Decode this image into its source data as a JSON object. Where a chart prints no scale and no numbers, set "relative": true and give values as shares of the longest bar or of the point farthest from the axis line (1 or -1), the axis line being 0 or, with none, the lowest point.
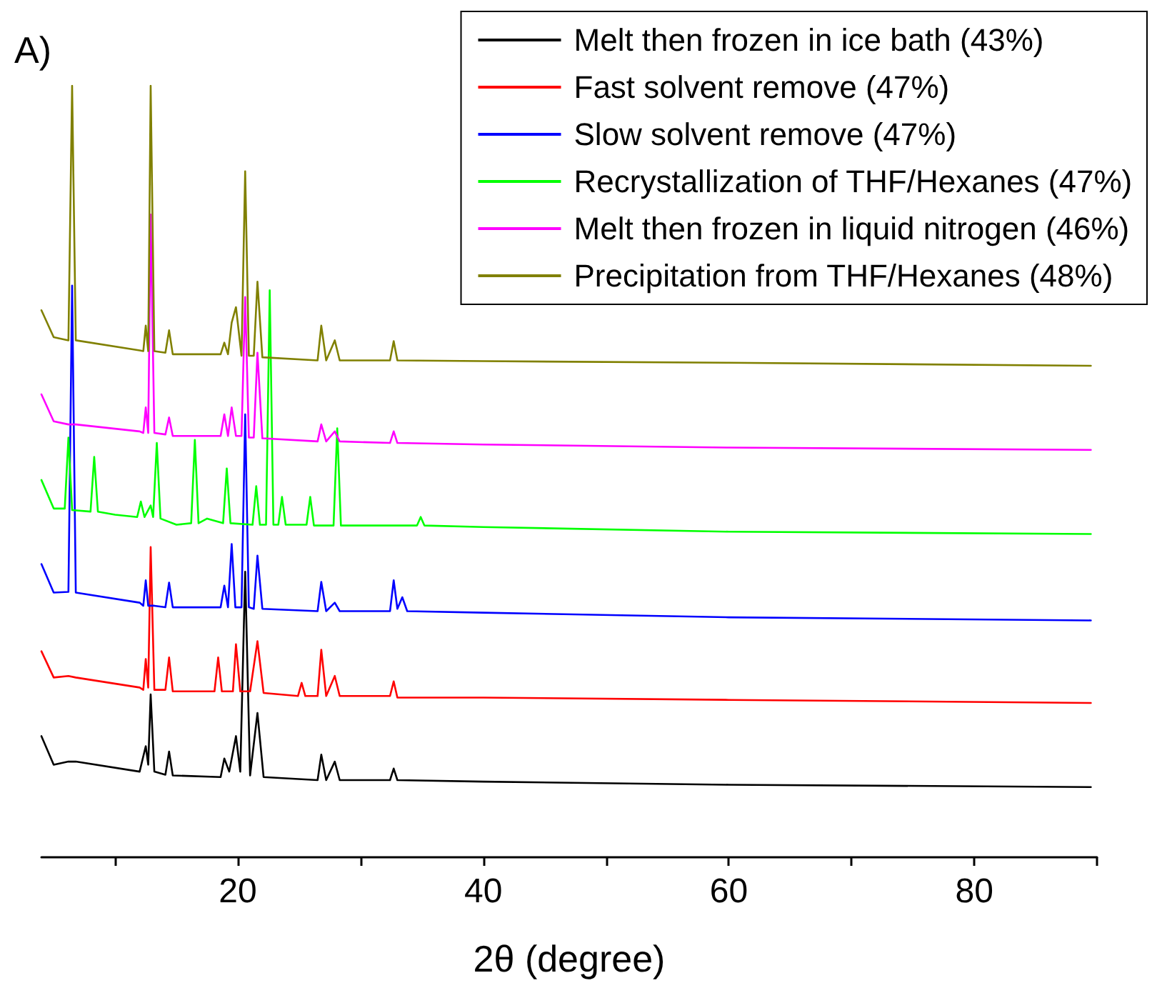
{
  "chart_data": {
    "type": "line",
    "relative": true,
    "xlabel": "2θ (degree)",
    "annotations": [
      "A)"
    ],
    "xlim": [
      4,
      90
    ],
    "xticks": [
      {
        "value": 10,
        "label": null
      },
      20,
      {
        "value": 30,
        "label": null
      },
      40,
      {
        "value": 50,
        "label": null
      },
      60,
      {
        "value": 70,
        "label": null
      },
      80,
      {
        "value": 90,
        "label": null
      }
    ],
    "grid": false,
    "legend": "top right",
    "marker": "none",
    "line_style": "solid",
    "series": [
      {
        "name": "Melt then frozen in ice bath (43%)",
        "color": "#000000",
        "x": [
          4,
          5,
          6.2,
          6.5,
          6.8,
          12,
          12.5,
          12.7,
          12.9,
          13.2,
          14.1,
          14.4,
          14.7,
          18.6,
          18.9,
          19.3,
          19.85,
          20.2,
          20.6,
          21.0,
          21.6,
          22.1,
          26.5,
          26.8,
          27.2,
          27.9,
          28.3,
          32.4,
          32.7,
          33,
          40,
          60,
          89.5
        ],
        "values": [
          0.157,
          0.12,
          0.124,
          null,
          0.124,
          0.111,
          0.144,
          0.12,
          0.211,
          0.111,
          0.107,
          0.137,
          0.106,
          0.104,
          0.128,
          0.111,
          0.157,
          0.111,
          0.37,
          0.106,
          0.187,
          0.104,
          0.1,
          0.133,
          0.1,
          0.124,
          0.1,
          0.1,
          0.115,
          0.1,
          0.098,
          0.094,
          0.091
        ]
      },
      {
        "name": "Fast solvent remove (47%)",
        "color": "#ff0000",
        "x": [
          4,
          5,
          6.2,
          6.5,
          6.8,
          12,
          12.3,
          12.5,
          12.7,
          12.9,
          13.2,
          14.1,
          14.4,
          14.7,
          18.1,
          18.4,
          18.7,
          19.6,
          19.85,
          20.2,
          20.6,
          21.0,
          21.6,
          22.1,
          24.9,
          25.2,
          25.5,
          26.5,
          26.8,
          27.2,
          27.9,
          28.3,
          32.4,
          32.7,
          33,
          40,
          60,
          89.5
        ],
        "values": [
          0.267,
          0.233,
          0.235,
          null,
          0.233,
          0.22,
          0.217,
          0.257,
          0.22,
          0.402,
          0.217,
          0.217,
          0.259,
          0.215,
          0.215,
          0.259,
          0.215,
          0.215,
          0.276,
          0.215,
          null,
          0.215,
          0.28,
          0.213,
          0.209,
          0.226,
          0.209,
          0.209,
          0.269,
          0.209,
          0.235,
          0.209,
          0.209,
          0.228,
          0.207,
          0.207,
          0.204,
          0.2
        ]
      },
      {
        "name": "Slow solvent remove (47%)",
        "color": "#0000ff",
        "x": [
          4,
          5,
          6.2,
          6.5,
          6.8,
          12,
          12.3,
          12.5,
          12.7,
          12.9,
          13.2,
          14.1,
          14.4,
          14.7,
          18.6,
          18.9,
          19.2,
          19.5,
          19.8,
          20.3,
          20.6,
          20.9,
          21.3,
          21.6,
          22.0,
          26.5,
          26.8,
          27.2,
          27.9,
          28.3,
          32.4,
          32.7,
          33.0,
          33.4,
          33.8,
          40,
          60,
          89.5
        ],
        "values": [
          0.38,
          0.343,
          0.344,
          0.741,
          0.343,
          0.33,
          0.326,
          0.359,
          0.326,
          null,
          0.326,
          0.324,
          0.356,
          0.324,
          0.324,
          0.352,
          0.324,
          0.406,
          0.324,
          0.324,
          0.574,
          0.324,
          0.322,
          0.391,
          0.322,
          0.319,
          0.357,
          0.319,
          0.33,
          0.319,
          0.319,
          0.359,
          0.322,
          0.337,
          0.319,
          0.317,
          0.311,
          0.307
        ]
      },
      {
        "name": "Recrystallization of THF/Hexanes (47%)",
        "color": "#00ff00",
        "x": [
          4,
          5,
          5.9,
          6.2,
          6.5,
          8.0,
          8.3,
          8.6,
          10,
          11.8,
          12.1,
          12.4,
          12.9,
          13.1,
          13.4,
          13.7,
          15,
          16.2,
          16.5,
          16.8,
          17.5,
          18.8,
          19.1,
          19.4,
          21.2,
          21.5,
          21.8,
          22.3,
          22.6,
          22.9,
          23.3,
          23.6,
          23.9,
          25.6,
          25.9,
          26.2,
          27.8,
          28.1,
          28.4,
          34.6,
          34.9,
          35.2,
          40,
          60,
          89.5
        ],
        "values": [
          0.489,
          0.452,
          0.452,
          0.544,
          0.45,
          0.448,
          0.519,
          0.448,
          0.444,
          0.441,
          0.461,
          0.441,
          0.456,
          0.441,
          0.537,
          0.439,
          0.431,
          0.433,
          0.541,
          0.433,
          0.439,
          0.433,
          0.504,
          0.433,
          0.431,
          0.481,
          0.431,
          0.431,
          0.735,
          0.431,
          0.431,
          0.467,
          0.431,
          0.431,
          0.467,
          0.43,
          0.43,
          0.556,
          0.43,
          0.43,
          0.441,
          0.43,
          0.428,
          0.422,
          0.419
        ]
      },
      {
        "name": "Melt then frozen in liquid nitrogen (46%)",
        "color": "#ff00ff",
        "x": [
          4,
          5,
          6.2,
          6.5,
          6.8,
          12,
          12.3,
          12.5,
          12.7,
          12.9,
          13.2,
          14.1,
          14.4,
          14.7,
          18.6,
          18.9,
          19.2,
          19.5,
          19.85,
          20.3,
          20.6,
          20.9,
          21.3,
          21.6,
          22.0,
          26.5,
          26.8,
          27.2,
          27.9,
          28.3,
          32.4,
          32.7,
          33,
          40,
          60,
          89.5
        ],
        "values": [
          0.6,
          0.565,
          0.561,
          null,
          0.561,
          0.552,
          0.55,
          0.583,
          0.55,
          0.833,
          0.55,
          0.548,
          0.57,
          0.546,
          0.546,
          0.574,
          0.546,
          0.583,
          0.546,
          0.546,
          0.726,
          0.544,
          0.544,
          0.654,
          0.543,
          0.539,
          0.561,
          0.539,
          0.552,
          0.539,
          0.537,
          0.552,
          0.537,
          0.535,
          0.531,
          0.528
        ]
      },
      {
        "name": "Precipitation from THF/Hexanes (48%)",
        "color": "#808000",
        "x": [
          4,
          5,
          6.2,
          6.5,
          6.8,
          12,
          12.3,
          12.5,
          12.7,
          12.9,
          13.2,
          14.1,
          14.4,
          14.7,
          18.6,
          18.9,
          19.2,
          19.5,
          19.85,
          20.3,
          20.6,
          20.9,
          21.3,
          21.6,
          22.0,
          26.5,
          26.8,
          27.2,
          27.9,
          28.3,
          32.4,
          32.7,
          33,
          40,
          60,
          89.5
        ],
        "values": [
          0.709,
          0.674,
          0.67,
          1.0,
          0.67,
          0.657,
          0.656,
          0.689,
          0.656,
          1.0,
          0.656,
          0.654,
          0.683,
          0.652,
          0.652,
          0.667,
          0.652,
          0.693,
          0.713,
          0.65,
          0.889,
          0.65,
          0.65,
          0.746,
          0.648,
          0.644,
          0.689,
          0.644,
          0.67,
          0.644,
          0.644,
          0.669,
          0.644,
          0.643,
          0.641,
          0.637
        ]
      }
    ]
  }
}
